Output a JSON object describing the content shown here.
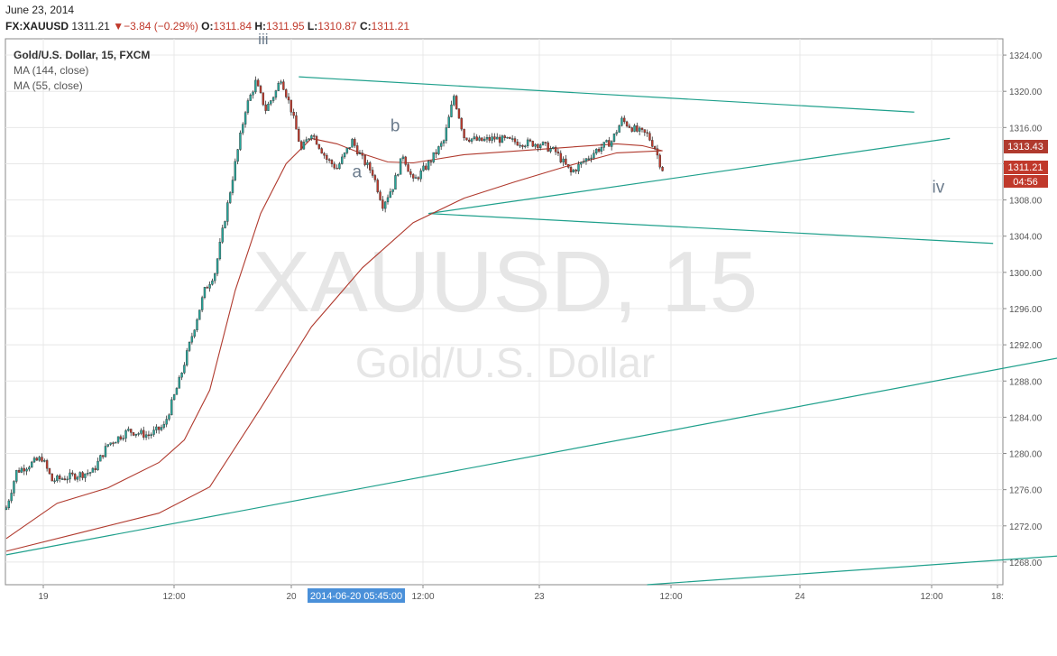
{
  "header": {
    "date": "June 23, 2014",
    "symbol": "FX:XAUUSD",
    "last": "1311.21",
    "change": "−3.84 (−0.29%)",
    "open_label": "O:",
    "open": "1311.84",
    "high_label": "H:",
    "high": "1311.95",
    "low_label": "L:",
    "low": "1310.87",
    "close_label": "C:",
    "close": "1311.21"
  },
  "legend": {
    "title": "Gold/U.S. Dollar, 15, FXCM",
    "ma1": "MA (144, close)",
    "ma2": "MA (55, close)"
  },
  "watermark": {
    "symbol": "XAUUSD, 15",
    "name": "Gold/U.S. Dollar"
  },
  "wave_labels": {
    "iii": "iii",
    "a": "a",
    "b": "b",
    "iv": "iv"
  },
  "price_tags": {
    "ma_value": "1313.43",
    "last": "1311.21",
    "countdown": "04:56"
  },
  "crosshair_label": "2014-06-20 05:45:00",
  "colors": {
    "up": "#26a69a",
    "down": "#c0392b",
    "ma": "#b03a2e",
    "trendline": "#1fa08c",
    "grid": "#e8e8e8",
    "axis_text": "#555555"
  },
  "chart_data": {
    "type": "candlestick",
    "title": "Gold/U.S. Dollar, 15, FXCM",
    "timeframe": "15",
    "y_ticks": [
      1268,
      1272,
      1276,
      1280,
      1284,
      1288,
      1292,
      1296,
      1300,
      1304,
      1308,
      1312,
      1316,
      1320,
      1324
    ],
    "y_tick_labels": [
      "1268.00",
      "1272.00",
      "1276.00",
      "1280.00",
      "1284.00",
      "1288.00",
      "1292.00",
      "1296.00",
      "1300.00",
      "1304.00",
      "1308.00",
      "1312.00",
      "1316.00",
      "1320.00",
      "1324.00"
    ],
    "ylim": [
      1265.5,
      1325.8
    ],
    "x_tick_labels": [
      "19",
      "12:00",
      "20",
      "12:00",
      "23",
      "12:00",
      "24",
      "12:00",
      "18:"
    ],
    "close_anchors": [
      [
        0,
        1274
      ],
      [
        4,
        1278
      ],
      [
        14,
        1279.5
      ],
      [
        18,
        1277
      ],
      [
        26,
        1277.5
      ],
      [
        34,
        1278
      ],
      [
        40,
        1281
      ],
      [
        48,
        1282.5
      ],
      [
        56,
        1282
      ],
      [
        62,
        1283
      ],
      [
        68,
        1288
      ],
      [
        74,
        1294
      ],
      [
        78,
        1298
      ],
      [
        82,
        1300
      ],
      [
        86,
        1306
      ],
      [
        90,
        1312
      ],
      [
        94,
        1318
      ],
      [
        98,
        1321
      ],
      [
        102,
        1318
      ],
      [
        106,
        1320
      ],
      [
        108,
        1321.5
      ],
      [
        112,
        1318
      ],
      [
        116,
        1313.5
      ],
      [
        120,
        1315.5
      ],
      [
        126,
        1312.5
      ],
      [
        130,
        1311.5
      ],
      [
        136,
        1314.5
      ],
      [
        140,
        1312.5
      ],
      [
        144,
        1311
      ],
      [
        148,
        1307.5
      ],
      [
        152,
        1309.5
      ],
      [
        156,
        1313
      ],
      [
        160,
        1310
      ],
      [
        166,
        1312
      ],
      [
        172,
        1314.5
      ],
      [
        176,
        1319.5
      ],
      [
        180,
        1315
      ],
      [
        186,
        1314.5
      ],
      [
        192,
        1314.8
      ],
      [
        198,
        1314.5
      ],
      [
        204,
        1314.3
      ],
      [
        210,
        1314.2
      ],
      [
        216,
        1313.3
      ],
      [
        222,
        1311
      ],
      [
        226,
        1312
      ],
      [
        232,
        1313.5
      ],
      [
        238,
        1314.5
      ],
      [
        242,
        1316.8
      ],
      [
        248,
        1315.6
      ],
      [
        252,
        1315.2
      ],
      [
        255,
        1313.8
      ],
      [
        258,
        1311.21
      ]
    ],
    "series": [
      {
        "name": "MA (144, close)",
        "points": [
          [
            0,
            1269.2
          ],
          [
            30,
            1271.3
          ],
          [
            60,
            1273.4
          ],
          [
            80,
            1276.3
          ],
          [
            100,
            1285
          ],
          [
            120,
            1294
          ],
          [
            140,
            1300.5
          ],
          [
            160,
            1305.5
          ],
          [
            180,
            1308.2
          ],
          [
            200,
            1310
          ],
          [
            220,
            1311.7
          ],
          [
            240,
            1313.2
          ],
          [
            258,
            1313.43
          ]
        ]
      },
      {
        "name": "MA (55, close)",
        "points": [
          [
            0,
            1270.6
          ],
          [
            20,
            1274.5
          ],
          [
            40,
            1276.2
          ],
          [
            60,
            1279
          ],
          [
            70,
            1281.5
          ],
          [
            80,
            1287
          ],
          [
            90,
            1298
          ],
          [
            100,
            1306.5
          ],
          [
            110,
            1312
          ],
          [
            120,
            1314.8
          ],
          [
            130,
            1314.2
          ],
          [
            140,
            1313.1
          ],
          [
            150,
            1312.2
          ],
          [
            160,
            1312.1
          ],
          [
            180,
            1313
          ],
          [
            200,
            1313.4
          ],
          [
            220,
            1313.8
          ],
          [
            240,
            1314.2
          ],
          [
            250,
            1314
          ],
          [
            258,
            1313.43
          ]
        ]
      }
    ],
    "trendlines": [
      {
        "from": [
          0,
          1268.8
        ],
        "to": [
          466,
          1293.3
        ]
      },
      {
        "from": [
          115,
          1321.6
        ],
        "to": [
          357,
          1317.7
        ]
      },
      {
        "from": [
          166,
          1306.5
        ],
        "to": [
          388,
          1303.2
        ]
      },
      {
        "from": [
          166,
          1306.5
        ],
        "to": [
          371,
          1314.8
        ]
      },
      {
        "from": [
          252,
          1265.5
        ],
        "to": [
          471,
          1269.8
        ]
      }
    ],
    "wave_label_positions": {
      "iii": [
        99,
        1325.2
      ],
      "b": [
        151,
        1315.6
      ],
      "a": [
        136,
        1310.5
      ],
      "iv": [
        364,
        1308.8
      ]
    }
  }
}
